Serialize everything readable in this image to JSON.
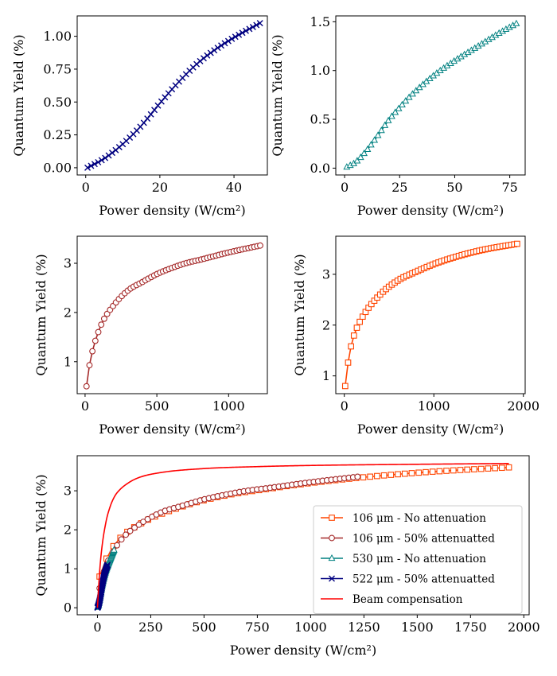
{
  "chart_data": [
    {
      "type": "line",
      "xlabel": "Power density (W/cm²)",
      "ylabel": "Quantum Yield (%)",
      "xlim": [
        -2.3,
        49
      ],
      "ylim": [
        -0.055,
        1.155
      ],
      "xticks": [
        0,
        20,
        40
      ],
      "yticks": [
        0.0,
        0.25,
        0.5,
        0.75,
        1.0
      ],
      "ytick_labels": [
        "0.00",
        "0.25",
        "0.50",
        "0.75",
        "1.00"
      ],
      "series": [
        {
          "marker": "x",
          "color": "#000080",
          "x_start": 0.5,
          "x_end": 47,
          "n_points": 50,
          "points": [
            [
              0.5,
              0.0
            ],
            [
              5,
              0.07
            ],
            [
              10,
              0.18
            ],
            [
              15,
              0.32
            ],
            [
              20,
              0.49
            ],
            [
              25,
              0.65
            ],
            [
              30,
              0.79
            ],
            [
              35,
              0.9
            ],
            [
              40,
              0.99
            ],
            [
              47,
              1.1
            ]
          ]
        }
      ]
    },
    {
      "type": "line",
      "xlabel": "Power density (W/cm²)",
      "ylabel": "Quantum Yield (%)",
      "xlim": [
        -4,
        82
      ],
      "ylim": [
        -0.07,
        1.56
      ],
      "xticks": [
        0,
        25,
        50,
        75
      ],
      "yticks": [
        0.0,
        0.5,
        1.0,
        1.5
      ],
      "ytick_labels": [
        "0.0",
        "0.5",
        "1.0",
        "1.5"
      ],
      "series": [
        {
          "marker": "triangle",
          "color": "#008080",
          "x_start": 1,
          "x_end": 78,
          "n_points": 50,
          "points": [
            [
              1,
              0.01
            ],
            [
              5,
              0.06
            ],
            [
              10,
              0.18
            ],
            [
              15,
              0.33
            ],
            [
              20,
              0.49
            ],
            [
              25,
              0.62
            ],
            [
              30,
              0.74
            ],
            [
              40,
              0.94
            ],
            [
              50,
              1.1
            ],
            [
              60,
              1.24
            ],
            [
              70,
              1.38
            ],
            [
              78,
              1.48
            ]
          ]
        }
      ]
    },
    {
      "type": "line",
      "xlabel": "Power density (W/cm²)",
      "ylabel": "Quantum Yield (%)",
      "xlim": [
        -55,
        1270
      ],
      "ylim": [
        0.35,
        3.55
      ],
      "xticks": [
        0,
        500,
        1000
      ],
      "yticks": [
        1,
        2,
        3
      ],
      "series": [
        {
          "marker": "circle",
          "color": "#a52a2a",
          "x_start": 10,
          "x_end": 1220,
          "n_points": 60,
          "points": [
            [
              10,
              0.5
            ],
            [
              30,
              0.92
            ],
            [
              50,
              1.2
            ],
            [
              80,
              1.5
            ],
            [
              120,
              1.8
            ],
            [
              200,
              2.15
            ],
            [
              300,
              2.45
            ],
            [
              400,
              2.62
            ],
            [
              500,
              2.78
            ],
            [
              600,
              2.9
            ],
            [
              700,
              3.0
            ],
            [
              800,
              3.07
            ],
            [
              1000,
              3.22
            ],
            [
              1220,
              3.36
            ]
          ]
        }
      ]
    },
    {
      "type": "line",
      "xlabel": "Power density (W/cm²)",
      "ylabel": "Quantum Yield (%)",
      "xlim": [
        -95,
        2020
      ],
      "ylim": [
        0.65,
        3.75
      ],
      "xticks": [
        0,
        1000,
        2000
      ],
      "yticks": [
        1,
        2,
        3
      ],
      "series": [
        {
          "marker": "square",
          "color": "#ff4500",
          "x_start": 10,
          "x_end": 1930,
          "n_points": 60,
          "points": [
            [
              10,
              0.8
            ],
            [
              50,
              1.35
            ],
            [
              100,
              1.75
            ],
            [
              200,
              2.15
            ],
            [
              400,
              2.6
            ],
            [
              600,
              2.88
            ],
            [
              800,
              3.05
            ],
            [
              1000,
              3.2
            ],
            [
              1200,
              3.32
            ],
            [
              1400,
              3.42
            ],
            [
              1600,
              3.5
            ],
            [
              1930,
              3.6
            ]
          ]
        }
      ]
    },
    {
      "type": "line",
      "xlabel": "Power density (W/cm²)",
      "ylabel": "Quantum Yield (%)",
      "xlim": [
        -95,
        2025
      ],
      "ylim": [
        -0.18,
        3.9
      ],
      "xticks": [
        0,
        250,
        500,
        750,
        1000,
        1250,
        1500,
        1750,
        2000
      ],
      "yticks": [
        0,
        1,
        2,
        3
      ],
      "legend_position": "lower-right",
      "series": [
        {
          "name": "106 μm - No attenuation",
          "marker": "square",
          "color": "#ff4500",
          "n_points": 60,
          "points": [
            [
              10,
              0.8
            ],
            [
              50,
              1.35
            ],
            [
              100,
              1.75
            ],
            [
              200,
              2.15
            ],
            [
              400,
              2.6
            ],
            [
              600,
              2.88
            ],
            [
              800,
              3.05
            ],
            [
              1000,
              3.2
            ],
            [
              1200,
              3.32
            ],
            [
              1400,
              3.42
            ],
            [
              1600,
              3.5
            ],
            [
              1930,
              3.6
            ]
          ]
        },
        {
          "name": "106 μm - 50% attenuatted",
          "marker": "circle",
          "color": "#a52a2a",
          "n_points": 60,
          "points": [
            [
              10,
              0.5
            ],
            [
              30,
              0.92
            ],
            [
              50,
              1.2
            ],
            [
              80,
              1.5
            ],
            [
              120,
              1.8
            ],
            [
              200,
              2.15
            ],
            [
              300,
              2.45
            ],
            [
              400,
              2.62
            ],
            [
              500,
              2.78
            ],
            [
              600,
              2.9
            ],
            [
              700,
              3.0
            ],
            [
              800,
              3.07
            ],
            [
              1000,
              3.22
            ],
            [
              1220,
              3.36
            ]
          ]
        },
        {
          "name": "530 μm - No attenuation",
          "marker": "triangle",
          "color": "#008080",
          "n_points": 50,
          "points": [
            [
              1,
              0.01
            ],
            [
              5,
              0.06
            ],
            [
              10,
              0.18
            ],
            [
              15,
              0.33
            ],
            [
              20,
              0.49
            ],
            [
              25,
              0.62
            ],
            [
              30,
              0.74
            ],
            [
              40,
              0.94
            ],
            [
              50,
              1.1
            ],
            [
              60,
              1.24
            ],
            [
              70,
              1.38
            ],
            [
              78,
              1.48
            ]
          ]
        },
        {
          "name": "522 μm - 50% attenuatted",
          "marker": "x",
          "color": "#000080",
          "n_points": 50,
          "points": [
            [
              0.5,
              0.0
            ],
            [
              5,
              0.07
            ],
            [
              10,
              0.18
            ],
            [
              15,
              0.32
            ],
            [
              20,
              0.49
            ],
            [
              25,
              0.65
            ],
            [
              30,
              0.79
            ],
            [
              35,
              0.9
            ],
            [
              40,
              0.99
            ],
            [
              47,
              1.1
            ]
          ]
        },
        {
          "name": "Beam compensation",
          "marker": "none",
          "color": "#ff0000",
          "line_only": true,
          "points": [
            [
              0,
              0.0
            ],
            [
              10,
              0.9
            ],
            [
              20,
              1.5
            ],
            [
              40,
              2.2
            ],
            [
              60,
              2.6
            ],
            [
              80,
              2.85
            ],
            [
              100,
              3.0
            ],
            [
              150,
              3.22
            ],
            [
              200,
              3.35
            ],
            [
              300,
              3.47
            ],
            [
              500,
              3.57
            ],
            [
              750,
              3.62
            ],
            [
              1000,
              3.65
            ],
            [
              1500,
              3.68
            ],
            [
              1930,
              3.7
            ]
          ]
        }
      ]
    }
  ]
}
